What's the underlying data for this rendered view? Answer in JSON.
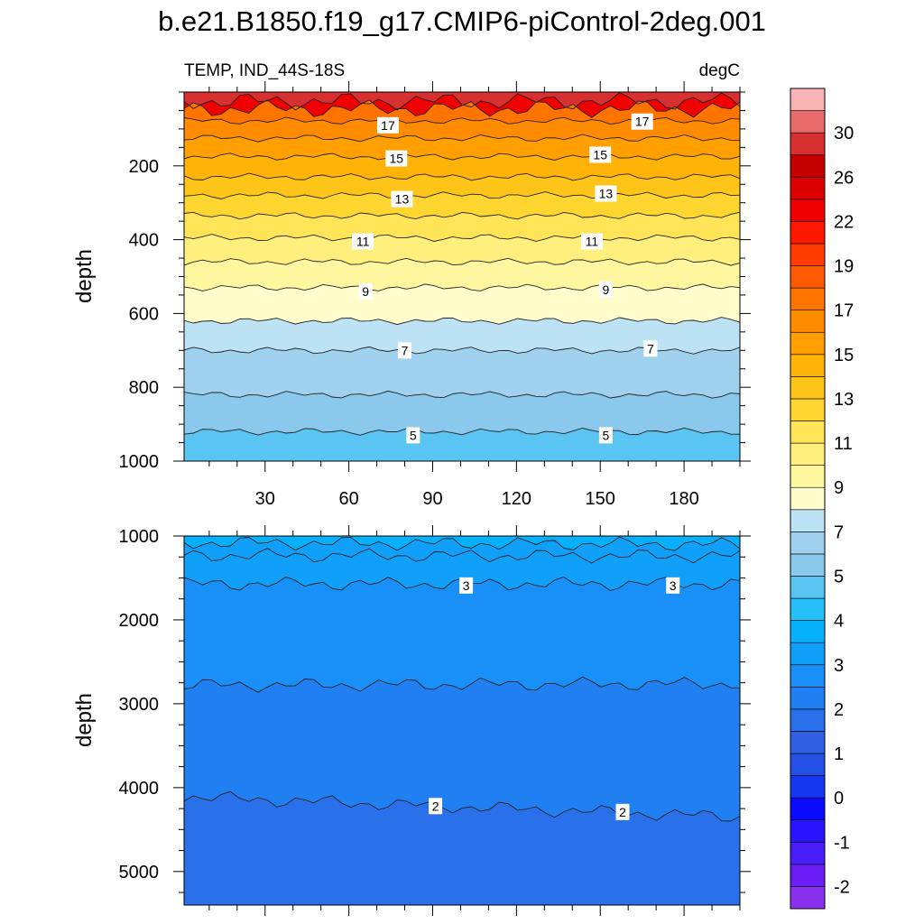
{
  "chart_data": {
    "type": "heatmap",
    "title": "b.e21.B1850.f19_g17.CMIP6-piControl-2deg.001",
    "left_subtitle": "TEMP, IND_44S-18S",
    "right_subtitle": "degC",
    "xlabel": "",
    "ylabel": "depth",
    "x_range": [
      1,
      200
    ],
    "x_ticks": [
      30,
      60,
      90,
      120,
      150,
      180
    ],
    "x_tick_labels": [
      "30",
      "60",
      "90",
      "120",
      "150",
      "180"
    ],
    "panels": [
      {
        "name": "upper",
        "ylim": [
          0,
          1000
        ],
        "y_ticks": [
          200,
          400,
          600,
          800,
          1000
        ],
        "y_tick_labels": [
          "200",
          "400",
          "600",
          "800",
          "1000"
        ],
        "isotherms": [
          {
            "value": 29.0,
            "depth": 25
          },
          {
            "value": 18.0,
            "depth": 45
          },
          {
            "value": 17.0,
            "depth": 78
          },
          {
            "value": 16.0,
            "depth": 125
          },
          {
            "value": 15.0,
            "depth": 175
          },
          {
            "value": 14.0,
            "depth": 230
          },
          {
            "value": 13.0,
            "depth": 280
          },
          {
            "value": 12.0,
            "depth": 335
          },
          {
            "value": 11.0,
            "depth": 395
          },
          {
            "value": 10.0,
            "depth": 460
          },
          {
            "value": 9.0,
            "depth": 530
          },
          {
            "value": 8.0,
            "depth": 620
          },
          {
            "value": 7.0,
            "depth": 700
          },
          {
            "value": 6.0,
            "depth": 820
          },
          {
            "value": 5.0,
            "depth": 920
          },
          {
            "value": 4.0,
            "depth": 1020
          }
        ],
        "contour_labels": [
          {
            "text": "17",
            "x": 74,
            "depth": 90
          },
          {
            "text": "17",
            "x": 165,
            "depth": 80
          },
          {
            "text": "15",
            "x": 77,
            "depth": 180
          },
          {
            "text": "15",
            "x": 150,
            "depth": 170
          },
          {
            "text": "13",
            "x": 79,
            "depth": 290
          },
          {
            "text": "13",
            "x": 152,
            "depth": 275
          },
          {
            "text": "11",
            "x": 65,
            "depth": 405
          },
          {
            "text": "11",
            "x": 147,
            "depth": 405
          },
          {
            "text": "9",
            "x": 66,
            "depth": 540
          },
          {
            "text": "9",
            "x": 152,
            "depth": 535
          },
          {
            "text": "7",
            "x": 80,
            "depth": 700
          },
          {
            "text": "7",
            "x": 168,
            "depth": 695
          },
          {
            "text": "5",
            "x": 83,
            "depth": 930
          },
          {
            "text": "5",
            "x": 152,
            "depth": 930
          }
        ]
      },
      {
        "name": "lower",
        "ylim": [
          1000,
          5400
        ],
        "y_ticks": [
          1000,
          2000,
          3000,
          4000,
          5000
        ],
        "y_tick_labels": [
          "1000",
          "2000",
          "3000",
          "4000",
          "5000"
        ],
        "isotherms": [
          {
            "value": 3.5,
            "depth_left": 1080,
            "depth_right": 1100
          },
          {
            "value": 3.25,
            "depth_left": 1230,
            "depth_right": 1240
          },
          {
            "value": 3.0,
            "depth_left": 1570,
            "depth_right": 1570
          },
          {
            "value": 2.5,
            "depth_left": 2780,
            "depth_right": 2760
          },
          {
            "value": 2.0,
            "depth_left": 4110,
            "depth_right": 4350
          }
        ],
        "contour_labels": [
          {
            "text": "3",
            "x": 102,
            "depth": 1590
          },
          {
            "text": "3",
            "x": 176,
            "depth": 1590
          },
          {
            "text": "2",
            "x": 91,
            "depth": 4220
          },
          {
            "text": "2",
            "x": 158,
            "depth": 4290
          }
        ]
      }
    ],
    "colorbar": {
      "levels": [
        -3,
        -2,
        -1.5,
        -1,
        -0.5,
        0,
        0.5,
        1,
        1.5,
        2,
        2.5,
        3,
        3.5,
        4,
        4.5,
        5,
        6,
        7,
        8,
        9,
        10,
        11,
        12,
        13,
        14,
        15,
        16,
        17,
        18,
        19,
        20,
        22,
        24,
        26,
        28,
        30,
        32
      ],
      "tick_labels": [
        "-2",
        "-1",
        "0",
        "1",
        "2",
        "3",
        "4",
        "5",
        "7",
        "9",
        "11",
        "13",
        "15",
        "17",
        "19",
        "22",
        "26",
        "30"
      ],
      "colors": [
        "#8c30f0",
        "#6a1ef5",
        "#4a1ef8",
        "#2a14fb",
        "#0a0afe",
        "#1637f0",
        "#2450e8",
        "#3060e4",
        "#2a70ea",
        "#2080f2",
        "#1890f8",
        "#10a0fa",
        "#06b0fb",
        "#25c0f8",
        "#5ac5f2",
        "#8ac8ec",
        "#a0d2ef",
        "#bce2f4",
        "#fffdcc",
        "#fff6a0",
        "#ffef7c",
        "#ffe458",
        "#ffd630",
        "#ffc418",
        "#ffb208",
        "#ff9f00",
        "#ff8c00",
        "#ff7400",
        "#ff5a00",
        "#ff3c00",
        "#ff1800",
        "#f00000",
        "#dc0000",
        "#c40000",
        "#d83030",
        "#e86a6a",
        "#f8b4b4"
      ]
    }
  }
}
